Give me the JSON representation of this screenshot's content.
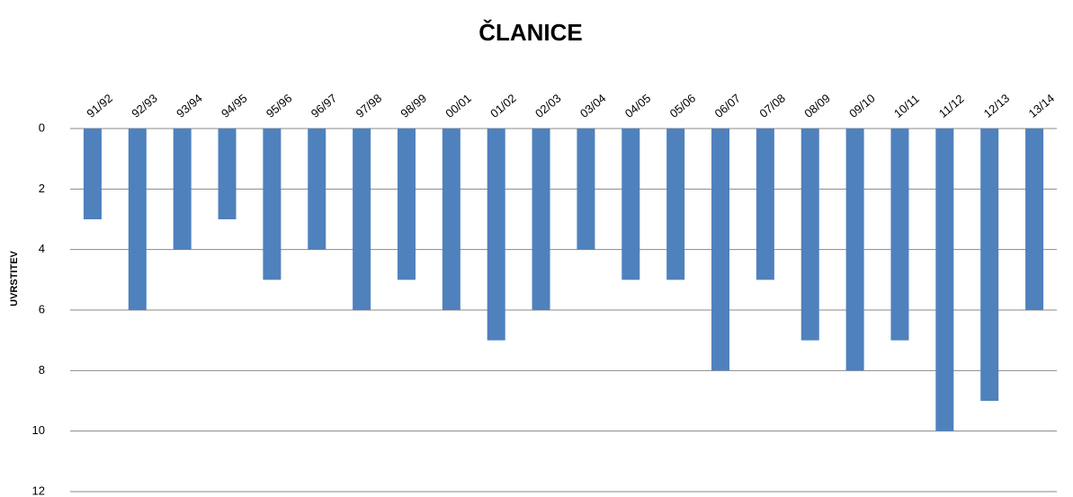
{
  "chart_data": {
    "type": "bar",
    "title": "ČLANICE",
    "y_label": "UVRSTITEV",
    "categories": [
      "91/92",
      "92/93",
      "93/94",
      "94/95",
      "95/96",
      "96/97",
      "97/98",
      "98/99",
      "00/01",
      "01/02",
      "02/03",
      "03/04",
      "04/05",
      "05/06",
      "06/07",
      "07/08",
      "08/09",
      "09/10",
      "10/11",
      "11/12",
      "12/13",
      "13/14"
    ],
    "values": [
      3,
      6,
      4,
      3,
      5,
      4,
      6,
      5,
      6,
      7,
      6,
      4,
      5,
      5,
      8,
      5,
      7,
      8,
      7,
      10,
      9,
      6
    ],
    "color": "#4f81bd",
    "ylim": [
      0,
      12
    ],
    "yticks": [
      0,
      2,
      4,
      6,
      8,
      10,
      12
    ],
    "y_inverted": true,
    "grid": true,
    "x_axis_position": "top"
  }
}
